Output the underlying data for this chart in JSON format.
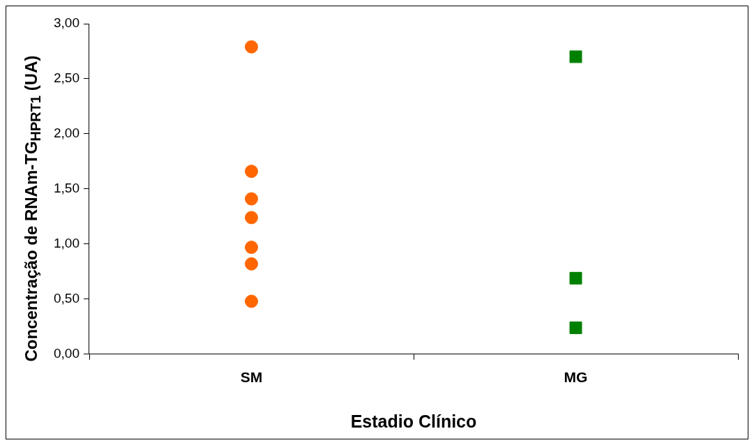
{
  "chart_data": {
    "type": "scatter",
    "xlabel": "Estadio Clínico",
    "ylabel": "Concentração de RNAm-TG$_{HPRT1}$ (UA)",
    "categories": [
      "SM",
      "MG"
    ],
    "ylim": [
      0,
      3
    ],
    "yticks": [
      {
        "value": 0,
        "label": "0,00"
      },
      {
        "value": 0.5,
        "label": "0,50"
      },
      {
        "value": 1,
        "label": "1,00"
      },
      {
        "value": 1.5,
        "label": "1,50"
      },
      {
        "value": 2,
        "label": "2,00"
      },
      {
        "value": 2.5,
        "label": "2,50"
      },
      {
        "value": 3,
        "label": "3,00"
      }
    ],
    "legend": false,
    "series": [
      {
        "color": "#ff6600",
        "marker": "circle",
        "x": [
          "SM",
          "SM",
          "SM",
          "SM",
          "SM",
          "SM",
          "SM"
        ],
        "values": [
          2.79,
          1.66,
          1.41,
          1.24,
          0.97,
          0.82,
          0.48
        ]
      },
      {
        "color": "#008000",
        "marker": "square",
        "x": [
          "MG",
          "MG",
          "MG"
        ],
        "values": [
          2.7,
          0.69,
          0.24
        ]
      }
    ]
  }
}
